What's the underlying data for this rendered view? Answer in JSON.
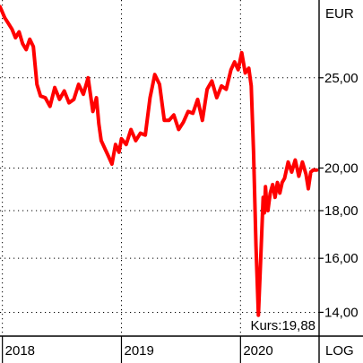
{
  "chart_data": {
    "type": "line",
    "currency_label": "EUR",
    "scale_label": "LOG",
    "log_scale": true,
    "grid": true,
    "line_color": "#ff0000",
    "ylim": [
      13.2,
      30.3
    ],
    "xlim": [
      2017.98,
      2020.66
    ],
    "y_ticks": [
      {
        "value": 25,
        "label": "25,00"
      },
      {
        "value": 20,
        "label": "20,00"
      },
      {
        "value": 18,
        "label": "18,00"
      },
      {
        "value": 16,
        "label": "16,00"
      },
      {
        "value": 14,
        "label": "14,00"
      }
    ],
    "x_ticks": [
      {
        "value": 2018,
        "label": "2018"
      },
      {
        "value": 2019,
        "label": "2019"
      },
      {
        "value": 2020,
        "label": "2020"
      }
    ],
    "last_price_label": "Kurs:19,88",
    "series": [
      {
        "x": [
          2017.98,
          2018.02,
          2018.05,
          2018.08,
          2018.11,
          2018.14,
          2018.17,
          2018.2,
          2018.23,
          2018.26,
          2018.29,
          2018.32,
          2018.36,
          2018.4,
          2018.44,
          2018.48,
          2018.52,
          2018.56,
          2018.6,
          2018.64,
          2018.68,
          2018.72,
          2018.76,
          2018.79,
          2018.81,
          2018.83,
          2018.86,
          2018.89,
          2018.92,
          2018.95,
          2018.98,
          2019.0,
          2019.04,
          2019.08,
          2019.12,
          2019.16,
          2019.2,
          2019.24,
          2019.28,
          2019.32,
          2019.36,
          2019.4,
          2019.44,
          2019.48,
          2019.52,
          2019.56,
          2019.6,
          2019.64,
          2019.68,
          2019.72,
          2019.76,
          2019.8,
          2019.84,
          2019.88,
          2019.92,
          2019.95,
          2019.98,
          2020.01,
          2020.04,
          2020.07,
          2020.09,
          2020.11,
          2020.13,
          2020.15,
          2020.17,
          2020.19,
          2020.2,
          2020.21,
          2020.22,
          2020.23,
          2020.25,
          2020.27,
          2020.29,
          2020.31,
          2020.33,
          2020.35,
          2020.37,
          2020.4,
          2020.43,
          2020.46,
          2020.49,
          2020.52,
          2020.55,
          2020.57,
          2020.59,
          2020.61,
          2020.64
        ],
        "y": [
          29.8,
          29.0,
          28.6,
          28.2,
          27.6,
          28.0,
          27.2,
          26.8,
          27.5,
          27.0,
          24.6,
          23.9,
          23.8,
          23.3,
          24.4,
          23.7,
          24.2,
          23.5,
          23.7,
          24.6,
          24.0,
          25.0,
          23.0,
          23.8,
          22.3,
          21.4,
          21.0,
          20.6,
          20.2,
          21.2,
          20.8,
          21.5,
          21.2,
          22.0,
          21.4,
          21.8,
          21.7,
          23.8,
          25.2,
          24.6,
          22.5,
          22.5,
          22.8,
          22.0,
          22.4,
          23.0,
          22.9,
          23.7,
          22.5,
          24.3,
          24.8,
          23.8,
          24.5,
          24.3,
          25.5,
          26.0,
          25.5,
          26.6,
          25.3,
          25.6,
          24.5,
          20.8,
          16.5,
          13.9,
          16.0,
          18.6,
          17.9,
          19.1,
          18.3,
          18.0,
          18.8,
          19.2,
          18.6,
          19.3,
          18.8,
          19.3,
          19.5,
          20.3,
          19.8,
          20.4,
          19.6,
          20.3,
          19.7,
          19.0,
          19.8,
          19.9,
          19.9
        ]
      }
    ]
  }
}
